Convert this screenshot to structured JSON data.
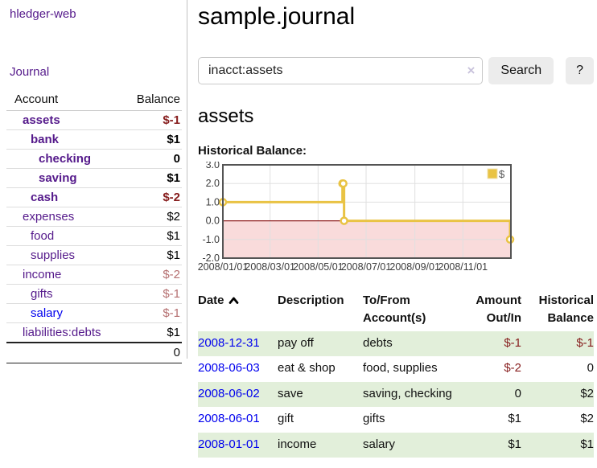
{
  "colors": {
    "link_visited_purple": "#551A8B",
    "link_unvisited_blue": "#0000EE",
    "negative_strong": "#861c1c",
    "negative_muted": "#b56f70",
    "row_stripe_green": "#e2efda",
    "series_gold": "#E9C344",
    "chart_negative_region": "#f9dbdb",
    "chart_zero_line": "#8f1e1e",
    "chart_border": "#545454",
    "chart_grid": "#e0e0e0"
  },
  "sidebar": {
    "brand": "hledger-web",
    "nav": {
      "journal": "Journal"
    },
    "accounts": {
      "headers": {
        "account": "Account",
        "balance": "Balance"
      },
      "rows": [
        {
          "label": "assets",
          "depth": 0,
          "bold": true,
          "balance": "$-1",
          "balance_tone": "neg-strong",
          "link_tone": "visited"
        },
        {
          "label": "bank",
          "depth": 1,
          "bold": true,
          "balance": "$1",
          "balance_tone": "normal",
          "link_tone": "visited"
        },
        {
          "label": "checking",
          "depth": 2,
          "bold": true,
          "balance": "0",
          "balance_tone": "normal",
          "link_tone": "visited"
        },
        {
          "label": "saving",
          "depth": 2,
          "bold": true,
          "balance": "$1",
          "balance_tone": "normal",
          "link_tone": "visited"
        },
        {
          "label": "cash",
          "depth": 1,
          "bold": true,
          "balance": "$-2",
          "balance_tone": "neg-strong",
          "link_tone": "visited"
        },
        {
          "label": "expenses",
          "depth": 0,
          "bold": false,
          "balance": "$2",
          "balance_tone": "normal",
          "link_tone": "visited"
        },
        {
          "label": "food",
          "depth": 1,
          "bold": false,
          "balance": "$1",
          "balance_tone": "normal",
          "link_tone": "visited"
        },
        {
          "label": "supplies",
          "depth": 1,
          "bold": false,
          "balance": "$1",
          "balance_tone": "normal",
          "link_tone": "visited"
        },
        {
          "label": "income",
          "depth": 0,
          "bold": false,
          "balance": "$-2",
          "balance_tone": "neg-muted",
          "link_tone": "visited"
        },
        {
          "label": "gifts",
          "depth": 1,
          "bold": false,
          "balance": "$-1",
          "balance_tone": "neg-muted",
          "link_tone": "visited"
        },
        {
          "label": "salary",
          "depth": 1,
          "bold": false,
          "balance": "$-1",
          "balance_tone": "neg-muted",
          "link_tone": "unvisited"
        },
        {
          "label": "liabilities:debts",
          "depth": 0,
          "bold": false,
          "balance": "$1",
          "balance_tone": "normal",
          "link_tone": "visited"
        }
      ],
      "total": "0"
    }
  },
  "main": {
    "title": "sample.journal",
    "search": {
      "value": "inacct:assets",
      "clear_icon": "×",
      "button": "Search",
      "help_button": "?"
    },
    "section_heading": "assets",
    "chart_label": "Historical Balance:"
  },
  "chart_data": {
    "type": "line",
    "title": "Historical Balance",
    "step": true,
    "ylim": [
      -2,
      3
    ],
    "y_ticks": [
      {
        "value": 3,
        "label": "3.0"
      },
      {
        "value": 2,
        "label": "2.0"
      },
      {
        "value": 1,
        "label": "1.0"
      },
      {
        "value": 0,
        "label": "0.0"
      },
      {
        "value": -1,
        "label": "-1.0"
      },
      {
        "value": -2,
        "label": "-2.0"
      }
    ],
    "x_range_days": [
      0,
      366
    ],
    "x_ticks": [
      {
        "day": 0,
        "label": "2008/01/01"
      },
      {
        "day": 60,
        "label": "2008/03/01"
      },
      {
        "day": 121,
        "label": "2008/05/01"
      },
      {
        "day": 182,
        "label": "2008/07/01"
      },
      {
        "day": 244,
        "label": "2008/09/01"
      },
      {
        "day": 305,
        "label": "2008/11/01"
      }
    ],
    "series": [
      {
        "name": "$",
        "points": [
          {
            "date": "2008-01-01",
            "day": 0,
            "value": 1
          },
          {
            "date": "2008-06-01",
            "day": 152,
            "value": 2
          },
          {
            "date": "2008-06-02",
            "day": 153,
            "value": 2
          },
          {
            "date": "2008-06-03",
            "day": 154,
            "value": 0
          },
          {
            "date": "2008-12-31",
            "day": 365,
            "value": -1
          }
        ]
      }
    ],
    "legend": {
      "label": "$",
      "position": "top-right"
    },
    "grid": true,
    "negative_region_shaded": true
  },
  "register": {
    "headers": {
      "date": "Date",
      "description": "Description",
      "account": "To/From Account(s)",
      "amount": "Amount Out/In",
      "balance": "Historical Balance"
    },
    "rows": [
      {
        "date": "2008-12-31",
        "description": "pay off",
        "accounts": "debts",
        "amount": "$-1",
        "balance": "$-1",
        "amount_negative": true,
        "balance_negative": true,
        "stripe": true
      },
      {
        "date": "2008-06-03",
        "description": "eat & shop",
        "accounts": "food, supplies",
        "amount": "$-2",
        "balance": "0",
        "amount_negative": true,
        "balance_negative": false,
        "stripe": false
      },
      {
        "date": "2008-06-02",
        "description": "save",
        "accounts": "saving, checking",
        "amount": "0",
        "balance": "$2",
        "amount_negative": false,
        "balance_negative": false,
        "stripe": true
      },
      {
        "date": "2008-06-01",
        "description": "gift",
        "accounts": "gifts",
        "amount": "$1",
        "balance": "$2",
        "amount_negative": false,
        "balance_negative": false,
        "stripe": false
      },
      {
        "date": "2008-01-01",
        "description": "income",
        "accounts": "salary",
        "amount": "$1",
        "balance": "$1",
        "amount_negative": false,
        "balance_negative": false,
        "stripe": true
      }
    ]
  }
}
